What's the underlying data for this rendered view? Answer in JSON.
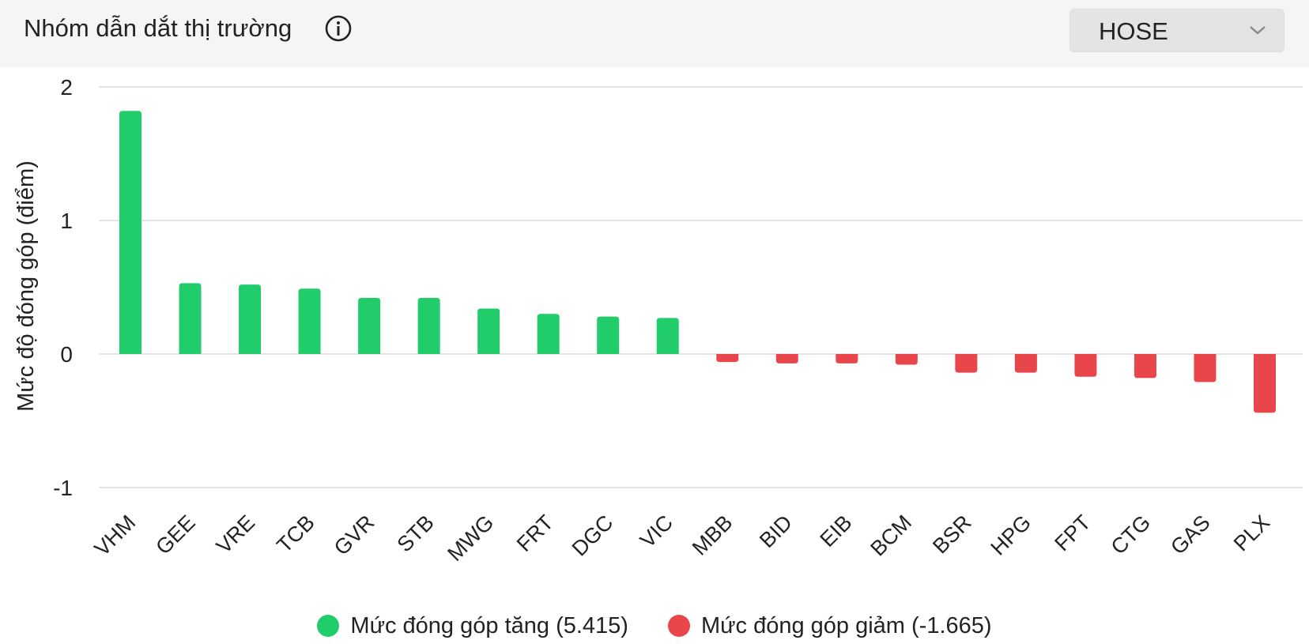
{
  "header": {
    "title": "Nhóm dẫn dắt thị trường",
    "info_icon": "info-circle-icon",
    "exchange_select": {
      "value": "HOSE",
      "icon": "chevron-down-icon"
    }
  },
  "colors": {
    "positive": "#21cc6b",
    "negative": "#e9464c",
    "grid": "#e3e3e3",
    "text": "#222222"
  },
  "chart_data": {
    "type": "bar",
    "ylabel": "Mức độ đóng góp (điểm)",
    "ylim": [
      -1,
      2
    ],
    "yticks": [
      "2",
      "1",
      "0",
      "-1"
    ],
    "ytick_values": [
      2,
      1,
      0,
      -1
    ],
    "grid": true,
    "legend_position": "bottom",
    "categories": [
      "VHM",
      "GEE",
      "VRE",
      "TCB",
      "GVR",
      "STB",
      "MWG",
      "FRT",
      "DGC",
      "VIC",
      "MBB",
      "BID",
      "EIB",
      "BCM",
      "BSR",
      "HPG",
      "FPT",
      "CTG",
      "GAS",
      "PLX"
    ],
    "values": [
      1.82,
      0.53,
      0.52,
      0.49,
      0.42,
      0.42,
      0.34,
      0.3,
      0.28,
      0.27,
      -0.06,
      -0.07,
      -0.07,
      -0.08,
      -0.14,
      -0.14,
      -0.17,
      -0.18,
      -0.21,
      -0.44
    ],
    "series": [
      {
        "name": "Mức đóng góp tăng (5.415)",
        "color": "#21cc6b"
      },
      {
        "name": "Mức đóng góp giảm (-1.665)",
        "color": "#e9464c"
      }
    ]
  }
}
